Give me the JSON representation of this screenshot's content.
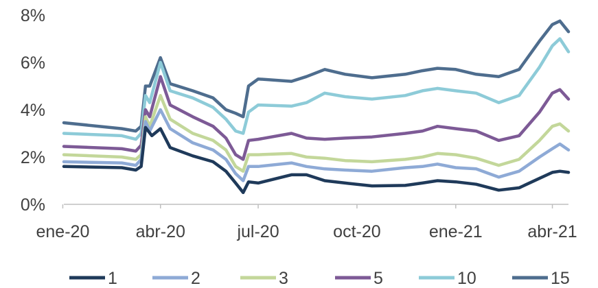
{
  "chart_data": {
    "type": "line",
    "title": "",
    "xlabel": "",
    "ylabel": "",
    "ylim": [
      0,
      8
    ],
    "y_ticks": [
      0,
      2,
      4,
      6,
      8
    ],
    "y_tick_labels": [
      "0%",
      "2%",
      "4%",
      "6%",
      "8%"
    ],
    "x_range": [
      "2020-01-02",
      "2021-04-16"
    ],
    "x_ticks": [
      "2020-01-01",
      "2020-04-01",
      "2020-07-01",
      "2020-10-01",
      "2021-01-01",
      "2021-04-01"
    ],
    "x_tick_labels": [
      "ene-20",
      "abr-20",
      "jul-20",
      "oct-20",
      "ene-21",
      "abr-21"
    ],
    "grid": false,
    "legend_position": "bottom",
    "series": [
      {
        "name": "1",
        "color": "#1f3a5a",
        "points": [
          [
            "2020-01-02",
            1.6
          ],
          [
            "2020-02-25",
            1.55
          ],
          [
            "2020-03-09",
            1.45
          ],
          [
            "2020-03-14",
            1.6
          ],
          [
            "2020-03-18",
            3.25
          ],
          [
            "2020-03-24",
            2.9
          ],
          [
            "2020-04-01",
            3.2
          ],
          [
            "2020-04-10",
            2.4
          ],
          [
            "2020-05-01",
            2.05
          ],
          [
            "2020-05-20",
            1.8
          ],
          [
            "2020-06-01",
            1.4
          ],
          [
            "2020-06-10",
            0.9
          ],
          [
            "2020-06-17",
            0.5
          ],
          [
            "2020-06-22",
            0.95
          ],
          [
            "2020-07-01",
            0.9
          ],
          [
            "2020-08-01",
            1.25
          ],
          [
            "2020-08-15",
            1.25
          ],
          [
            "2020-09-01",
            1.0
          ],
          [
            "2020-09-20",
            0.9
          ],
          [
            "2020-10-15",
            0.78
          ],
          [
            "2020-11-15",
            0.8
          ],
          [
            "2020-12-01",
            0.9
          ],
          [
            "2020-12-15",
            1.0
          ],
          [
            "2021-01-01",
            0.95
          ],
          [
            "2021-01-20",
            0.85
          ],
          [
            "2021-02-10",
            0.6
          ],
          [
            "2021-03-01",
            0.7
          ],
          [
            "2021-03-20",
            1.1
          ],
          [
            "2021-04-01",
            1.35
          ],
          [
            "2021-04-08",
            1.4
          ],
          [
            "2021-04-16",
            1.35
          ]
        ]
      },
      {
        "name": "2",
        "color": "#8eaad6",
        "points": [
          [
            "2020-01-02",
            1.8
          ],
          [
            "2020-02-25",
            1.75
          ],
          [
            "2020-03-09",
            1.65
          ],
          [
            "2020-03-14",
            1.9
          ],
          [
            "2020-03-18",
            3.5
          ],
          [
            "2020-03-22",
            3.1
          ],
          [
            "2020-04-01",
            4.0
          ],
          [
            "2020-04-10",
            3.2
          ],
          [
            "2020-05-01",
            2.6
          ],
          [
            "2020-05-20",
            2.3
          ],
          [
            "2020-06-01",
            1.9
          ],
          [
            "2020-06-10",
            1.3
          ],
          [
            "2020-06-17",
            1.0
          ],
          [
            "2020-06-22",
            1.6
          ],
          [
            "2020-07-01",
            1.6
          ],
          [
            "2020-08-01",
            1.75
          ],
          [
            "2020-08-15",
            1.6
          ],
          [
            "2020-09-01",
            1.5
          ],
          [
            "2020-09-20",
            1.45
          ],
          [
            "2020-10-15",
            1.4
          ],
          [
            "2020-11-15",
            1.55
          ],
          [
            "2020-12-01",
            1.6
          ],
          [
            "2020-12-15",
            1.7
          ],
          [
            "2021-01-01",
            1.55
          ],
          [
            "2021-01-20",
            1.5
          ],
          [
            "2021-02-10",
            1.15
          ],
          [
            "2021-03-01",
            1.4
          ],
          [
            "2021-03-20",
            2.0
          ],
          [
            "2021-04-01",
            2.35
          ],
          [
            "2021-04-08",
            2.55
          ],
          [
            "2021-04-16",
            2.3
          ]
        ]
      },
      {
        "name": "3",
        "color": "#c3d79a",
        "points": [
          [
            "2020-01-02",
            2.1
          ],
          [
            "2020-02-25",
            2.0
          ],
          [
            "2020-03-09",
            1.9
          ],
          [
            "2020-03-14",
            2.1
          ],
          [
            "2020-03-18",
            3.7
          ],
          [
            "2020-03-22",
            3.3
          ],
          [
            "2020-04-01",
            4.6
          ],
          [
            "2020-04-10",
            3.6
          ],
          [
            "2020-05-01",
            3.0
          ],
          [
            "2020-05-20",
            2.7
          ],
          [
            "2020-06-01",
            2.3
          ],
          [
            "2020-06-10",
            1.6
          ],
          [
            "2020-06-17",
            1.4
          ],
          [
            "2020-06-22",
            2.1
          ],
          [
            "2020-07-01",
            2.1
          ],
          [
            "2020-08-01",
            2.15
          ],
          [
            "2020-08-15",
            2.0
          ],
          [
            "2020-09-01",
            1.95
          ],
          [
            "2020-09-20",
            1.85
          ],
          [
            "2020-10-15",
            1.8
          ],
          [
            "2020-11-15",
            1.9
          ],
          [
            "2020-12-01",
            2.0
          ],
          [
            "2020-12-15",
            2.15
          ],
          [
            "2021-01-01",
            2.1
          ],
          [
            "2021-01-20",
            1.95
          ],
          [
            "2021-02-10",
            1.65
          ],
          [
            "2021-03-01",
            1.9
          ],
          [
            "2021-03-20",
            2.7
          ],
          [
            "2021-04-01",
            3.3
          ],
          [
            "2021-04-08",
            3.4
          ],
          [
            "2021-04-16",
            3.1
          ]
        ]
      },
      {
        "name": "5",
        "color": "#7d5a96",
        "points": [
          [
            "2020-01-02",
            2.45
          ],
          [
            "2020-02-25",
            2.35
          ],
          [
            "2020-03-09",
            2.25
          ],
          [
            "2020-03-14",
            2.5
          ],
          [
            "2020-03-18",
            4.0
          ],
          [
            "2020-03-22",
            3.7
          ],
          [
            "2020-04-01",
            5.4
          ],
          [
            "2020-04-10",
            4.2
          ],
          [
            "2020-05-01",
            3.7
          ],
          [
            "2020-05-20",
            3.3
          ],
          [
            "2020-06-01",
            2.8
          ],
          [
            "2020-06-10",
            2.1
          ],
          [
            "2020-06-17",
            1.9
          ],
          [
            "2020-06-22",
            2.7
          ],
          [
            "2020-07-01",
            2.75
          ],
          [
            "2020-08-01",
            3.0
          ],
          [
            "2020-08-15",
            2.8
          ],
          [
            "2020-09-01",
            2.75
          ],
          [
            "2020-09-20",
            2.8
          ],
          [
            "2020-10-15",
            2.85
          ],
          [
            "2020-11-15",
            3.0
          ],
          [
            "2020-12-01",
            3.1
          ],
          [
            "2020-12-15",
            3.3
          ],
          [
            "2021-01-01",
            3.2
          ],
          [
            "2021-01-20",
            3.1
          ],
          [
            "2021-02-10",
            2.7
          ],
          [
            "2021-03-01",
            2.9
          ],
          [
            "2021-03-20",
            3.9
          ],
          [
            "2021-04-01",
            4.7
          ],
          [
            "2021-04-08",
            4.85
          ],
          [
            "2021-04-16",
            4.45
          ]
        ]
      },
      {
        "name": "10",
        "color": "#8dcbd8",
        "points": [
          [
            "2020-01-02",
            3.0
          ],
          [
            "2020-02-25",
            2.9
          ],
          [
            "2020-03-09",
            2.75
          ],
          [
            "2020-03-14",
            3.0
          ],
          [
            "2020-03-18",
            4.6
          ],
          [
            "2020-03-22",
            4.3
          ],
          [
            "2020-04-01",
            6.0
          ],
          [
            "2020-04-10",
            4.8
          ],
          [
            "2020-05-01",
            4.5
          ],
          [
            "2020-05-20",
            4.1
          ],
          [
            "2020-06-01",
            3.6
          ],
          [
            "2020-06-10",
            3.1
          ],
          [
            "2020-06-17",
            3.0
          ],
          [
            "2020-06-22",
            3.9
          ],
          [
            "2020-07-01",
            4.2
          ],
          [
            "2020-08-01",
            4.15
          ],
          [
            "2020-08-15",
            4.3
          ],
          [
            "2020-09-01",
            4.7
          ],
          [
            "2020-09-20",
            4.55
          ],
          [
            "2020-10-15",
            4.45
          ],
          [
            "2020-11-15",
            4.6
          ],
          [
            "2020-12-01",
            4.8
          ],
          [
            "2020-12-15",
            4.9
          ],
          [
            "2021-01-01",
            4.8
          ],
          [
            "2021-01-20",
            4.7
          ],
          [
            "2021-02-10",
            4.3
          ],
          [
            "2021-03-01",
            4.6
          ],
          [
            "2021-03-20",
            5.8
          ],
          [
            "2021-04-01",
            6.7
          ],
          [
            "2021-04-08",
            7.0
          ],
          [
            "2021-04-16",
            6.45
          ]
        ]
      },
      {
        "name": "15",
        "color": "#4e6d8e",
        "points": [
          [
            "2020-01-02",
            3.45
          ],
          [
            "2020-02-25",
            3.2
          ],
          [
            "2020-03-09",
            3.1
          ],
          [
            "2020-03-14",
            3.3
          ],
          [
            "2020-03-18",
            5.0
          ],
          [
            "2020-03-22",
            5.0
          ],
          [
            "2020-04-01",
            6.2
          ],
          [
            "2020-04-10",
            5.1
          ],
          [
            "2020-05-01",
            4.8
          ],
          [
            "2020-05-20",
            4.5
          ],
          [
            "2020-06-01",
            4.0
          ],
          [
            "2020-06-10",
            3.85
          ],
          [
            "2020-06-17",
            3.7
          ],
          [
            "2020-06-22",
            5.0
          ],
          [
            "2020-07-01",
            5.3
          ],
          [
            "2020-08-01",
            5.2
          ],
          [
            "2020-08-15",
            5.4
          ],
          [
            "2020-09-01",
            5.7
          ],
          [
            "2020-09-20",
            5.5
          ],
          [
            "2020-10-15",
            5.35
          ],
          [
            "2020-11-15",
            5.5
          ],
          [
            "2020-12-01",
            5.65
          ],
          [
            "2020-12-15",
            5.75
          ],
          [
            "2021-01-01",
            5.7
          ],
          [
            "2021-01-20",
            5.5
          ],
          [
            "2021-02-10",
            5.4
          ],
          [
            "2021-03-01",
            5.7
          ],
          [
            "2021-03-20",
            6.9
          ],
          [
            "2021-04-01",
            7.6
          ],
          [
            "2021-04-08",
            7.75
          ],
          [
            "2021-04-16",
            7.3
          ]
        ]
      }
    ]
  }
}
